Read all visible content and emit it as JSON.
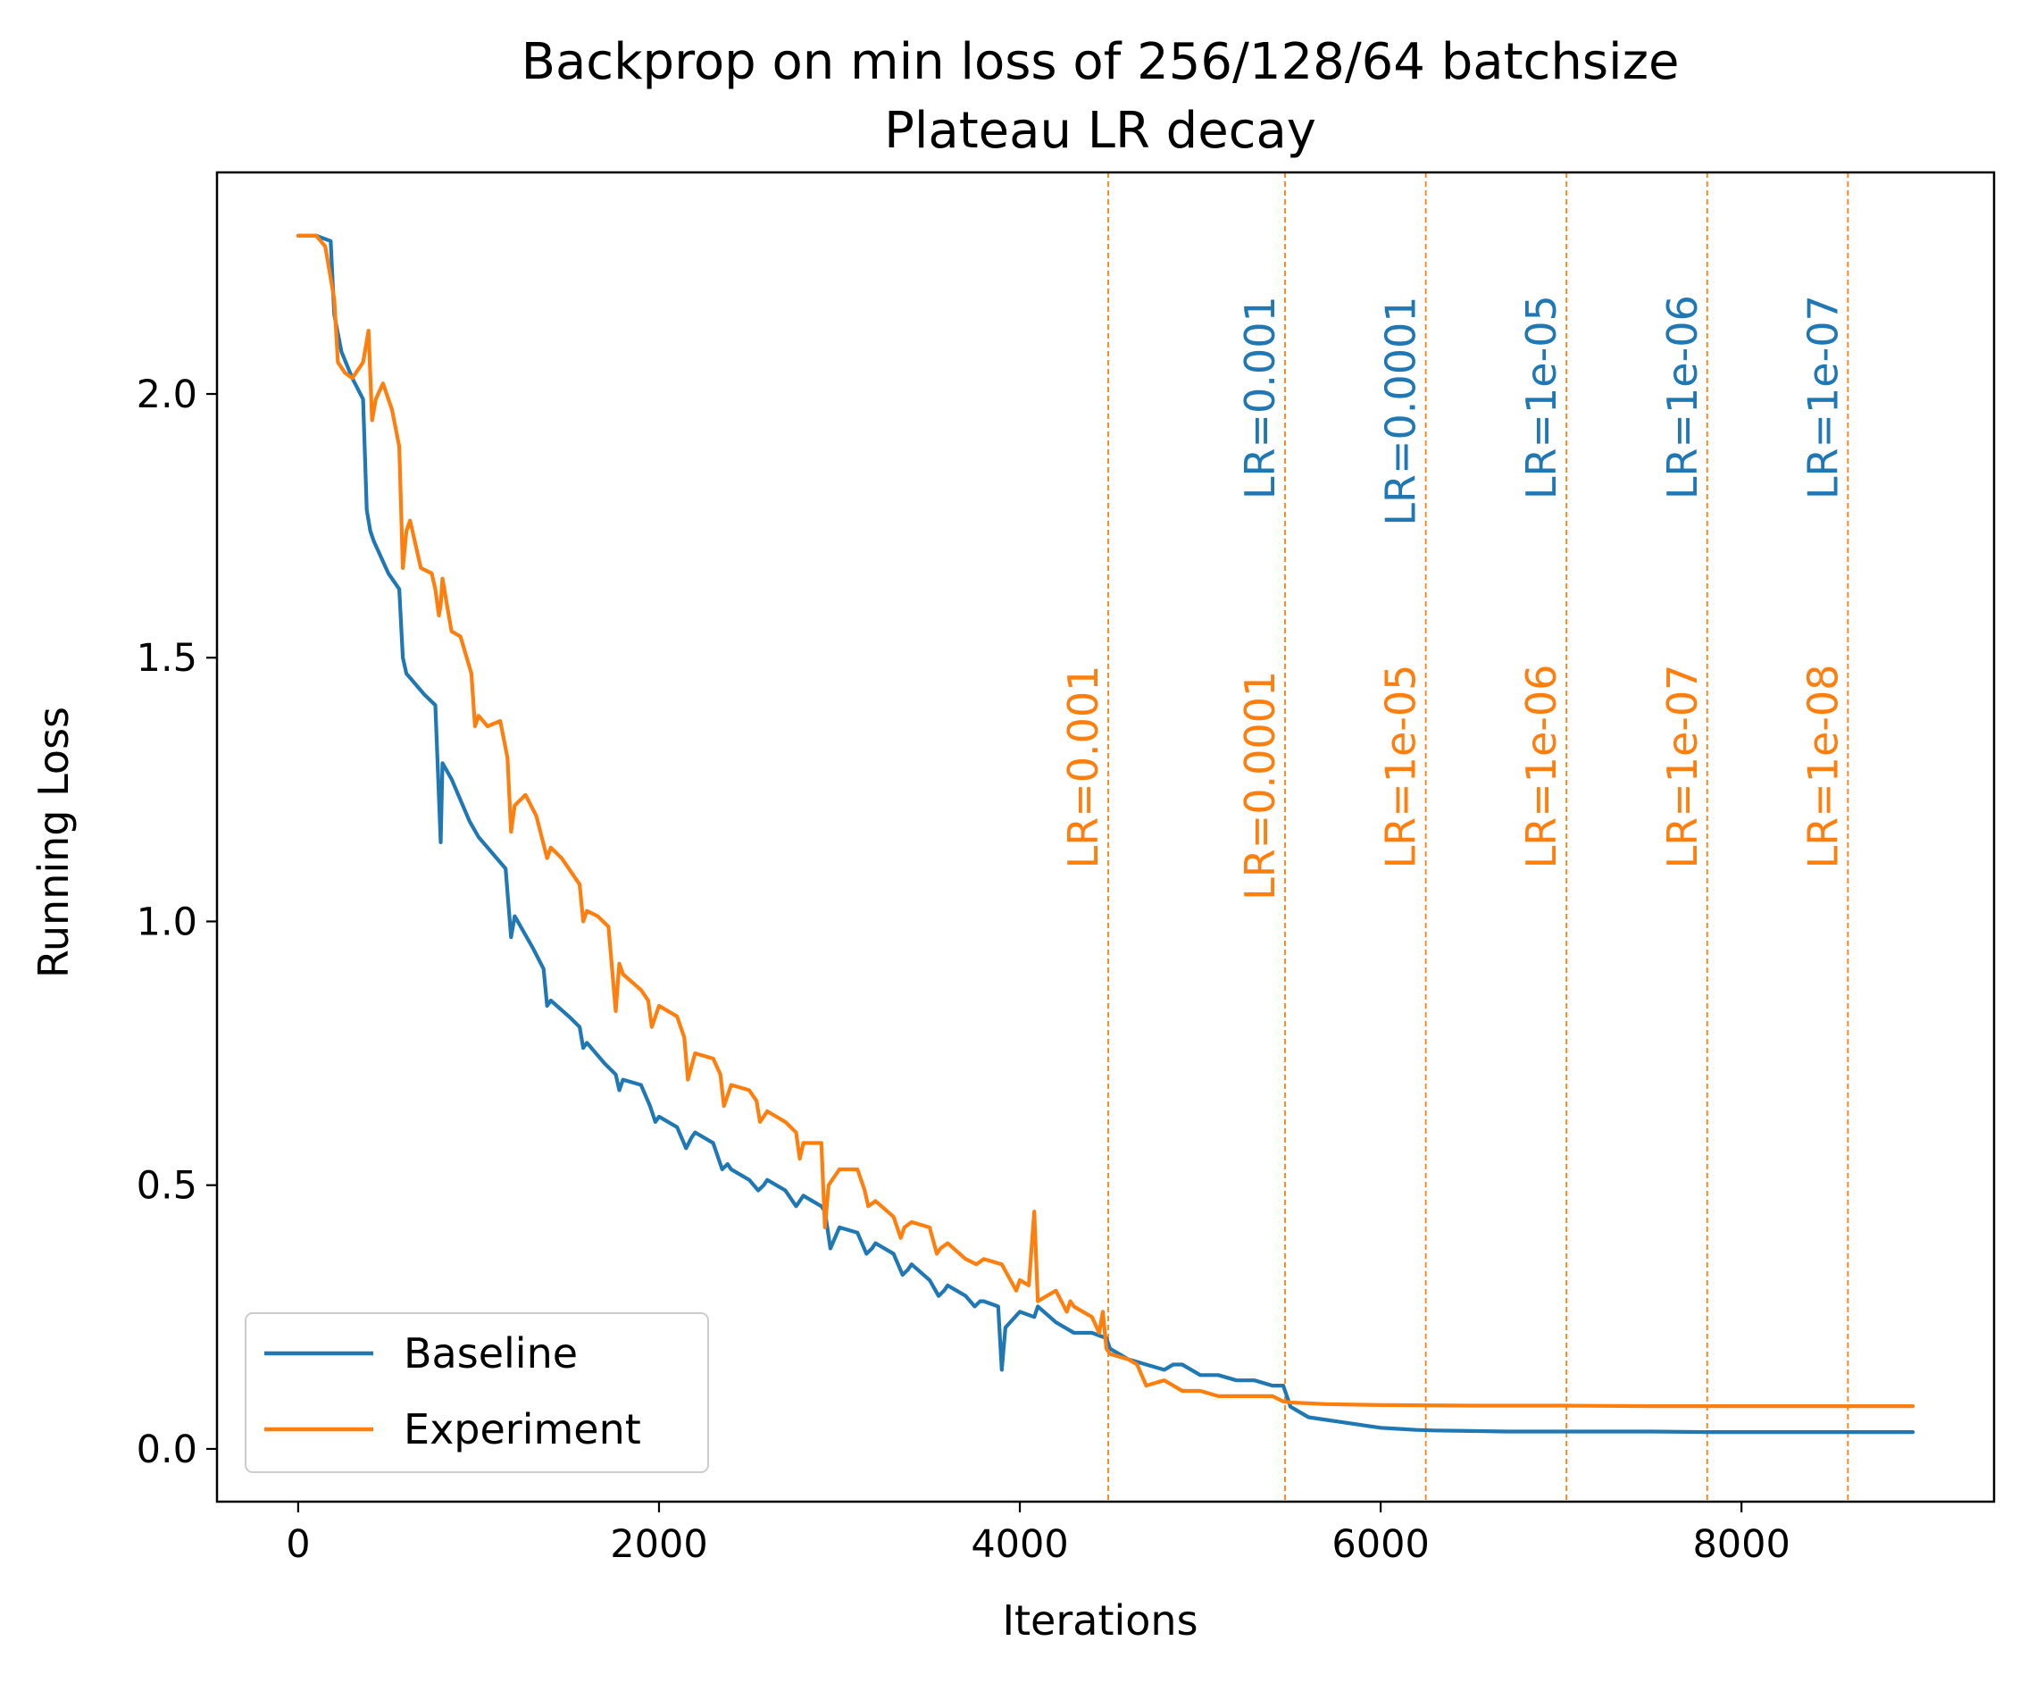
{
  "chart_data": {
    "type": "line",
    "title": "Backprop on min loss of 256/128/64 batchsize",
    "subtitle": "Plateau LR decay",
    "xlabel": "Iterations",
    "ylabel": "Running Loss",
    "xlim": [
      -450,
      9400
    ],
    "ylim": [
      -0.1,
      2.42
    ],
    "xticks": [
      0,
      2000,
      4000,
      6000,
      8000
    ],
    "xtick_labels": [
      "0",
      "2000",
      "4000",
      "6000",
      "8000"
    ],
    "yticks": [
      0.0,
      0.5,
      1.0,
      1.5,
      2.0
    ],
    "ytick_labels": [
      "0.0",
      "0.5",
      "1.0",
      "1.5",
      "2.0"
    ],
    "grid": false,
    "legend_position": "lower-left",
    "series": [
      {
        "name": "Baseline",
        "color": "#1f77b4",
        "x": [
          0,
          100,
          180,
          200,
          240,
          300,
          360,
          380,
          400,
          420,
          500,
          560,
          580,
          600,
          700,
          760,
          790,
          800,
          850,
          950,
          1000,
          1100,
          1150,
          1180,
          1200,
          1300,
          1360,
          1380,
          1400,
          1500,
          1560,
          1580,
          1600,
          1700,
          1760,
          1780,
          1800,
          1900,
          1950,
          1980,
          2000,
          2100,
          2150,
          2180,
          2200,
          2300,
          2350,
          2380,
          2400,
          2500,
          2550,
          2580,
          2600,
          2700,
          2760,
          2780,
          2800,
          2900,
          2920,
          2950,
          3000,
          3100,
          3150,
          3180,
          3200,
          3300,
          3350,
          3380,
          3400,
          3500,
          3550,
          3580,
          3600,
          3700,
          3750,
          3780,
          3800,
          3880,
          3900,
          3920,
          4000,
          4080,
          4100,
          4200,
          4300,
          4400,
          4480,
          4500,
          4600,
          4700,
          4800,
          4850,
          4900,
          5000,
          5100,
          5200,
          5300,
          5400,
          5460,
          5500,
          5600,
          5700,
          5800,
          5900,
          6000,
          6100,
          6200,
          6300,
          6500,
          6700,
          7000,
          7200,
          7500,
          7800,
          8000,
          8200,
          8400,
          8600,
          8800,
          8950
        ],
        "values": [
          2.3,
          2.3,
          2.29,
          2.15,
          2.08,
          2.03,
          1.99,
          1.78,
          1.74,
          1.72,
          1.66,
          1.63,
          1.5,
          1.47,
          1.43,
          1.41,
          1.15,
          1.3,
          1.27,
          1.19,
          1.16,
          1.12,
          1.1,
          0.97,
          1.01,
          0.95,
          0.91,
          0.84,
          0.85,
          0.82,
          0.8,
          0.76,
          0.77,
          0.73,
          0.71,
          0.68,
          0.7,
          0.69,
          0.65,
          0.62,
          0.63,
          0.61,
          0.57,
          0.59,
          0.6,
          0.58,
          0.53,
          0.54,
          0.53,
          0.51,
          0.49,
          0.5,
          0.51,
          0.49,
          0.46,
          0.47,
          0.48,
          0.46,
          0.45,
          0.38,
          0.42,
          0.41,
          0.37,
          0.38,
          0.39,
          0.37,
          0.33,
          0.34,
          0.35,
          0.32,
          0.29,
          0.3,
          0.31,
          0.29,
          0.27,
          0.28,
          0.28,
          0.27,
          0.15,
          0.23,
          0.26,
          0.25,
          0.27,
          0.24,
          0.22,
          0.22,
          0.21,
          0.19,
          0.17,
          0.16,
          0.15,
          0.16,
          0.16,
          0.14,
          0.14,
          0.13,
          0.13,
          0.12,
          0.12,
          0.08,
          0.06,
          0.055,
          0.05,
          0.045,
          0.04,
          0.038,
          0.036,
          0.035,
          0.034,
          0.033,
          0.033,
          0.033,
          0.033,
          0.032,
          0.032,
          0.032,
          0.032,
          0.032,
          0.032,
          0.032
        ]
      },
      {
        "name": "Experiment",
        "color": "#ff7f0e",
        "x": [
          0,
          100,
          150,
          200,
          220,
          260,
          300,
          360,
          390,
          410,
          430,
          470,
          520,
          560,
          580,
          600,
          620,
          680,
          740,
          760,
          780,
          790,
          800,
          850,
          900,
          960,
          980,
          1000,
          1050,
          1120,
          1160,
          1180,
          1200,
          1260,
          1320,
          1380,
          1400,
          1460,
          1560,
          1580,
          1600,
          1660,
          1720,
          1760,
          1780,
          1800,
          1900,
          1940,
          1960,
          2000,
          2100,
          2140,
          2160,
          2200,
          2300,
          2340,
          2360,
          2400,
          2500,
          2540,
          2560,
          2600,
          2700,
          2760,
          2780,
          2800,
          2900,
          2920,
          2940,
          3000,
          3100,
          3140,
          3160,
          3200,
          3300,
          3340,
          3360,
          3400,
          3500,
          3540,
          3560,
          3600,
          3700,
          3760,
          3800,
          3900,
          3980,
          4000,
          4050,
          4080,
          4100,
          4200,
          4260,
          4280,
          4300,
          4400,
          4440,
          4460,
          4480,
          4500,
          4600,
          4650,
          4700,
          4800,
          4850,
          4900,
          5000,
          5100,
          5200,
          5300,
          5400,
          5460,
          5500,
          5700,
          6000,
          6500,
          7000,
          7500,
          7800,
          8000,
          8500,
          8600,
          8950
        ],
        "values": [
          2.3,
          2.3,
          2.28,
          2.18,
          2.06,
          2.04,
          2.03,
          2.06,
          2.12,
          1.95,
          1.99,
          2.02,
          1.97,
          1.9,
          1.67,
          1.74,
          1.76,
          1.67,
          1.66,
          1.63,
          1.58,
          1.6,
          1.65,
          1.55,
          1.54,
          1.47,
          1.37,
          1.39,
          1.37,
          1.38,
          1.31,
          1.17,
          1.22,
          1.24,
          1.2,
          1.12,
          1.14,
          1.12,
          1.07,
          1.0,
          1.02,
          1.01,
          0.99,
          0.83,
          0.92,
          0.9,
          0.87,
          0.85,
          0.8,
          0.84,
          0.82,
          0.78,
          0.7,
          0.75,
          0.74,
          0.71,
          0.65,
          0.69,
          0.68,
          0.66,
          0.62,
          0.64,
          0.62,
          0.6,
          0.55,
          0.58,
          0.58,
          0.42,
          0.5,
          0.53,
          0.53,
          0.49,
          0.46,
          0.47,
          0.44,
          0.4,
          0.42,
          0.43,
          0.42,
          0.37,
          0.38,
          0.39,
          0.36,
          0.35,
          0.36,
          0.35,
          0.3,
          0.32,
          0.31,
          0.45,
          0.28,
          0.3,
          0.26,
          0.28,
          0.27,
          0.25,
          0.22,
          0.26,
          0.19,
          0.18,
          0.17,
          0.16,
          0.12,
          0.13,
          0.12,
          0.11,
          0.11,
          0.1,
          0.1,
          0.1,
          0.1,
          0.09,
          0.088,
          0.085,
          0.083,
          0.082,
          0.082,
          0.081,
          0.081,
          0.081,
          0.081,
          0.081,
          0.081
        ]
      }
    ],
    "vlines": [
      {
        "x": 4490,
        "color": "#ff7f0e",
        "style": "dashed"
      },
      {
        "x": 5470,
        "color": "#ff7f0e",
        "style": "dashed"
      },
      {
        "x": 6250,
        "color": "#ff7f0e",
        "style": "dashed"
      },
      {
        "x": 7030,
        "color": "#ff7f0e",
        "style": "dashed"
      },
      {
        "x": 7810,
        "color": "#ff7f0e",
        "style": "dashed"
      },
      {
        "x": 8590,
        "color": "#ff7f0e",
        "style": "dashed"
      }
    ],
    "annotations": [
      {
        "text": "LR=0.001",
        "x": 5470,
        "y": 1.8,
        "color": "#1f77b4",
        "rotation": 90
      },
      {
        "text": "LR=0.0001",
        "x": 6250,
        "y": 1.75,
        "color": "#1f77b4",
        "rotation": 90
      },
      {
        "text": "LR=1e-05",
        "x": 7030,
        "y": 1.8,
        "color": "#1f77b4",
        "rotation": 90
      },
      {
        "text": "LR=1e-06",
        "x": 7810,
        "y": 1.8,
        "color": "#1f77b4",
        "rotation": 90
      },
      {
        "text": "LR=1e-07",
        "x": 8590,
        "y": 1.8,
        "color": "#1f77b4",
        "rotation": 90
      },
      {
        "text": "LR=0.001",
        "x": 4490,
        "y": 1.1,
        "color": "#ff7f0e",
        "rotation": 90
      },
      {
        "text": "LR=0.0001",
        "x": 5470,
        "y": 1.04,
        "color": "#ff7f0e",
        "rotation": 90
      },
      {
        "text": "LR=1e-05",
        "x": 6250,
        "y": 1.1,
        "color": "#ff7f0e",
        "rotation": 90
      },
      {
        "text": "LR=1e-06",
        "x": 7030,
        "y": 1.1,
        "color": "#ff7f0e",
        "rotation": 90
      },
      {
        "text": "LR=1e-07",
        "x": 7810,
        "y": 1.1,
        "color": "#ff7f0e",
        "rotation": 90
      },
      {
        "text": "LR=1e-08",
        "x": 8590,
        "y": 1.1,
        "color": "#ff7f0e",
        "rotation": 90
      }
    ]
  }
}
